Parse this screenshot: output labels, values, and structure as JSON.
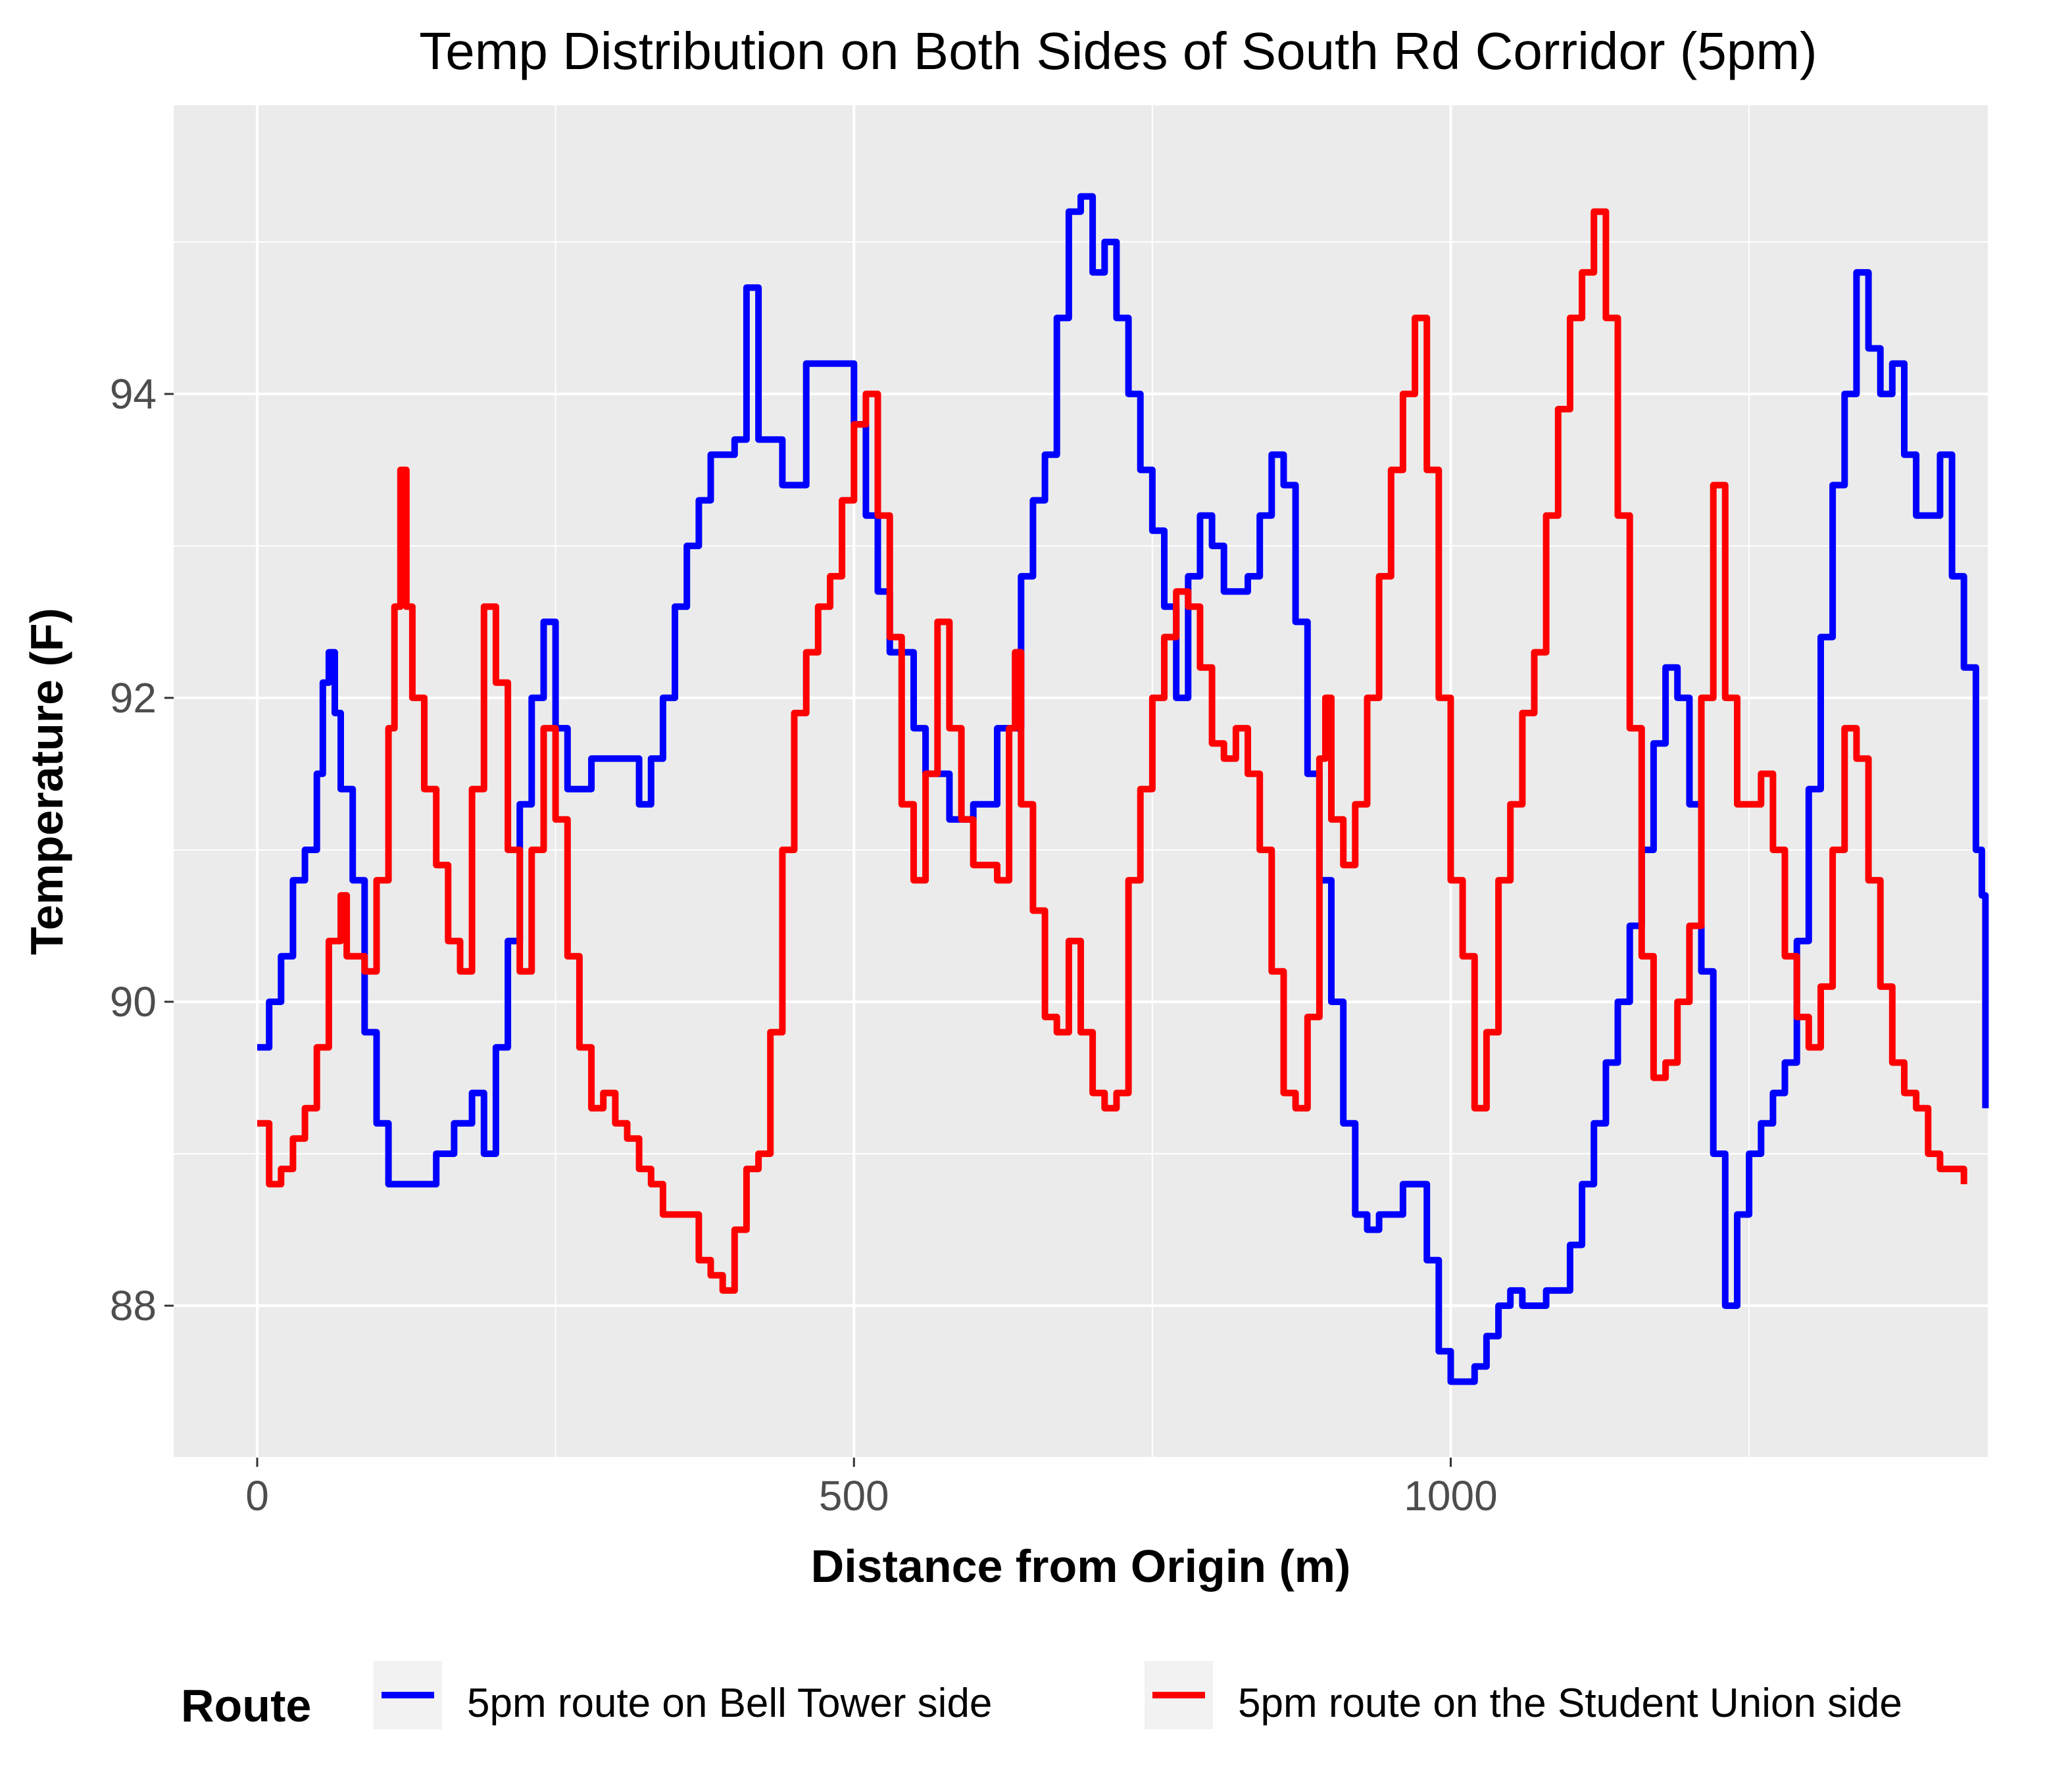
{
  "chart_data": {
    "type": "line",
    "title": "Temp Distribution on Both Sides of South Rd Corridor (5pm)",
    "xlabel": "Distance from Origin (m)",
    "ylabel": "Temperature (F)",
    "xlim": [
      -70,
      1450
    ],
    "ylim": [
      87.0,
      95.9
    ],
    "x_ticks": [
      0,
      500,
      1000
    ],
    "x_tick_labels": [
      "0",
      "500",
      "1000"
    ],
    "y_ticks": [
      88,
      90,
      92,
      94
    ],
    "y_tick_labels": [
      "88",
      "90",
      "92",
      "94"
    ],
    "grid": true,
    "legend": {
      "title": "Route",
      "position": "bottom"
    },
    "series": [
      {
        "name": "5pm route on Bell Tower side",
        "color": "#0000ff",
        "points": [
          [
            0,
            89.7
          ],
          [
            10,
            90.0
          ],
          [
            20,
            90.3
          ],
          [
            30,
            90.8
          ],
          [
            40,
            91.0
          ],
          [
            50,
            91.5
          ],
          [
            55,
            92.1
          ],
          [
            60,
            92.3
          ],
          [
            65,
            91.9
          ],
          [
            70,
            91.4
          ],
          [
            80,
            90.8
          ],
          [
            90,
            89.8
          ],
          [
            100,
            89.2
          ],
          [
            110,
            88.8
          ],
          [
            130,
            88.8
          ],
          [
            150,
            89.0
          ],
          [
            165,
            89.2
          ],
          [
            180,
            89.4
          ],
          [
            190,
            89.0
          ],
          [
            200,
            89.7
          ],
          [
            210,
            90.4
          ],
          [
            220,
            91.3
          ],
          [
            230,
            92.0
          ],
          [
            240,
            92.5
          ],
          [
            250,
            91.8
          ],
          [
            260,
            91.4
          ],
          [
            280,
            91.6
          ],
          [
            300,
            91.6
          ],
          [
            320,
            91.3
          ],
          [
            330,
            91.6
          ],
          [
            340,
            92.0
          ],
          [
            350,
            92.6
          ],
          [
            360,
            93.0
          ],
          [
            370,
            93.3
          ],
          [
            380,
            93.6
          ],
          [
            400,
            93.7
          ],
          [
            410,
            94.7
          ],
          [
            420,
            93.7
          ],
          [
            440,
            93.4
          ],
          [
            460,
            94.2
          ],
          [
            480,
            94.2
          ],
          [
            500,
            93.8
          ],
          [
            510,
            93.2
          ],
          [
            520,
            92.7
          ],
          [
            530,
            92.3
          ],
          [
            550,
            91.8
          ],
          [
            560,
            91.5
          ],
          [
            580,
            91.2
          ],
          [
            600,
            91.3
          ],
          [
            620,
            91.8
          ],
          [
            640,
            92.8
          ],
          [
            650,
            93.3
          ],
          [
            660,
            93.6
          ],
          [
            670,
            94.5
          ],
          [
            680,
            95.2
          ],
          [
            690,
            95.3
          ],
          [
            700,
            94.8
          ],
          [
            710,
            95.0
          ],
          [
            720,
            94.5
          ],
          [
            730,
            94.0
          ],
          [
            740,
            93.5
          ],
          [
            750,
            93.1
          ],
          [
            760,
            92.6
          ],
          [
            770,
            92.0
          ],
          [
            780,
            92.8
          ],
          [
            790,
            93.2
          ],
          [
            800,
            93.0
          ],
          [
            810,
            92.7
          ],
          [
            820,
            92.7
          ],
          [
            830,
            92.8
          ],
          [
            840,
            93.2
          ],
          [
            850,
            93.6
          ],
          [
            860,
            93.4
          ],
          [
            870,
            92.5
          ],
          [
            880,
            91.5
          ],
          [
            890,
            90.8
          ],
          [
            900,
            90.0
          ],
          [
            910,
            89.2
          ],
          [
            920,
            88.6
          ],
          [
            930,
            88.5
          ],
          [
            940,
            88.6
          ],
          [
            950,
            88.6
          ],
          [
            960,
            88.8
          ],
          [
            970,
            88.8
          ],
          [
            980,
            88.3
          ],
          [
            990,
            87.7
          ],
          [
            1000,
            87.5
          ],
          [
            1010,
            87.5
          ],
          [
            1020,
            87.6
          ],
          [
            1030,
            87.8
          ],
          [
            1040,
            88.0
          ],
          [
            1050,
            88.1
          ],
          [
            1060,
            88.0
          ],
          [
            1080,
            88.1
          ],
          [
            1090,
            88.1
          ],
          [
            1100,
            88.4
          ],
          [
            1110,
            88.8
          ],
          [
            1120,
            89.2
          ],
          [
            1130,
            89.6
          ],
          [
            1140,
            90.0
          ],
          [
            1150,
            90.5
          ],
          [
            1160,
            91.0
          ],
          [
            1170,
            91.7
          ],
          [
            1180,
            92.2
          ],
          [
            1190,
            92.0
          ],
          [
            1200,
            91.3
          ],
          [
            1210,
            90.2
          ],
          [
            1220,
            89.0
          ],
          [
            1230,
            88.0
          ],
          [
            1240,
            88.6
          ],
          [
            1250,
            89.0
          ],
          [
            1260,
            89.2
          ],
          [
            1270,
            89.4
          ],
          [
            1280,
            89.6
          ],
          [
            1290,
            90.4
          ],
          [
            1300,
            91.4
          ],
          [
            1310,
            92.4
          ],
          [
            1320,
            93.4
          ],
          [
            1330,
            94.0
          ],
          [
            1340,
            94.8
          ],
          [
            1350,
            94.3
          ],
          [
            1360,
            94.0
          ],
          [
            1370,
            94.2
          ],
          [
            1380,
            93.6
          ],
          [
            1390,
            93.2
          ],
          [
            1400,
            93.2
          ],
          [
            1410,
            93.6
          ],
          [
            1420,
            92.8
          ],
          [
            1430,
            92.2
          ],
          [
            1440,
            91.0
          ],
          [
            1445,
            90.7
          ],
          [
            1448,
            89.3
          ]
        ]
      },
      {
        "name": "5pm route on the Student Union side",
        "color": "#ff0000",
        "points": [
          [
            0,
            89.2
          ],
          [
            10,
            88.8
          ],
          [
            20,
            88.9
          ],
          [
            30,
            89.1
          ],
          [
            40,
            89.3
          ],
          [
            50,
            89.7
          ],
          [
            60,
            90.4
          ],
          [
            70,
            90.7
          ],
          [
            75,
            90.3
          ],
          [
            80,
            90.3
          ],
          [
            90,
            90.2
          ],
          [
            100,
            90.8
          ],
          [
            110,
            91.8
          ],
          [
            115,
            92.6
          ],
          [
            120,
            93.5
          ],
          [
            125,
            92.6
          ],
          [
            130,
            92.0
          ],
          [
            140,
            91.4
          ],
          [
            150,
            90.9
          ],
          [
            160,
            90.4
          ],
          [
            170,
            90.2
          ],
          [
            180,
            91.4
          ],
          [
            190,
            92.6
          ],
          [
            200,
            92.1
          ],
          [
            210,
            91.0
          ],
          [
            220,
            90.2
          ],
          [
            230,
            91.0
          ],
          [
            240,
            91.8
          ],
          [
            250,
            91.2
          ],
          [
            260,
            90.3
          ],
          [
            270,
            89.7
          ],
          [
            280,
            89.3
          ],
          [
            290,
            89.4
          ],
          [
            300,
            89.2
          ],
          [
            310,
            89.1
          ],
          [
            320,
            88.9
          ],
          [
            330,
            88.8
          ],
          [
            340,
            88.6
          ],
          [
            360,
            88.6
          ],
          [
            370,
            88.3
          ],
          [
            380,
            88.2
          ],
          [
            390,
            88.1
          ],
          [
            400,
            88.5
          ],
          [
            410,
            88.9
          ],
          [
            420,
            89.0
          ],
          [
            430,
            89.8
          ],
          [
            440,
            91.0
          ],
          [
            450,
            91.9
          ],
          [
            460,
            92.3
          ],
          [
            470,
            92.6
          ],
          [
            480,
            92.8
          ],
          [
            490,
            93.3
          ],
          [
            500,
            93.8
          ],
          [
            510,
            94.0
          ],
          [
            520,
            93.2
          ],
          [
            530,
            92.4
          ],
          [
            540,
            91.3
          ],
          [
            550,
            90.8
          ],
          [
            560,
            91.5
          ],
          [
            570,
            92.5
          ],
          [
            580,
            91.8
          ],
          [
            590,
            91.2
          ],
          [
            600,
            90.9
          ],
          [
            610,
            90.9
          ],
          [
            620,
            90.8
          ],
          [
            630,
            91.8
          ],
          [
            635,
            92.3
          ],
          [
            640,
            91.3
          ],
          [
            650,
            90.6
          ],
          [
            660,
            89.9
          ],
          [
            670,
            89.8
          ],
          [
            680,
            90.4
          ],
          [
            690,
            89.8
          ],
          [
            700,
            89.4
          ],
          [
            710,
            89.3
          ],
          [
            720,
            89.4
          ],
          [
            730,
            90.8
          ],
          [
            740,
            91.4
          ],
          [
            750,
            92.0
          ],
          [
            760,
            92.4
          ],
          [
            770,
            92.7
          ],
          [
            780,
            92.6
          ],
          [
            790,
            92.2
          ],
          [
            800,
            91.7
          ],
          [
            810,
            91.6
          ],
          [
            820,
            91.8
          ],
          [
            830,
            91.5
          ],
          [
            840,
            91.0
          ],
          [
            850,
            90.2
          ],
          [
            860,
            89.4
          ],
          [
            870,
            89.3
          ],
          [
            880,
            89.9
          ],
          [
            890,
            91.6
          ],
          [
            895,
            92.0
          ],
          [
            900,
            91.2
          ],
          [
            910,
            90.9
          ],
          [
            920,
            91.3
          ],
          [
            930,
            92.0
          ],
          [
            940,
            92.8
          ],
          [
            950,
            93.5
          ],
          [
            960,
            94.0
          ],
          [
            970,
            94.5
          ],
          [
            980,
            93.5
          ],
          [
            990,
            92.0
          ],
          [
            1000,
            90.8
          ],
          [
            1010,
            90.3
          ],
          [
            1020,
            89.3
          ],
          [
            1030,
            89.8
          ],
          [
            1040,
            90.8
          ],
          [
            1050,
            91.3
          ],
          [
            1060,
            91.9
          ],
          [
            1070,
            92.3
          ],
          [
            1080,
            93.2
          ],
          [
            1090,
            93.9
          ],
          [
            1100,
            94.5
          ],
          [
            1110,
            94.8
          ],
          [
            1120,
            95.2
          ],
          [
            1130,
            94.5
          ],
          [
            1140,
            93.2
          ],
          [
            1150,
            91.8
          ],
          [
            1160,
            90.3
          ],
          [
            1170,
            89.5
          ],
          [
            1180,
            89.6
          ],
          [
            1190,
            90.0
          ],
          [
            1200,
            90.5
          ],
          [
            1210,
            92.0
          ],
          [
            1220,
            93.4
          ],
          [
            1230,
            92.0
          ],
          [
            1240,
            91.3
          ],
          [
            1250,
            91.3
          ],
          [
            1260,
            91.5
          ],
          [
            1270,
            91.0
          ],
          [
            1280,
            90.3
          ],
          [
            1290,
            89.9
          ],
          [
            1300,
            89.7
          ],
          [
            1310,
            90.1
          ],
          [
            1320,
            91.0
          ],
          [
            1330,
            91.8
          ],
          [
            1340,
            91.6
          ],
          [
            1350,
            90.8
          ],
          [
            1360,
            90.1
          ],
          [
            1370,
            89.6
          ],
          [
            1380,
            89.4
          ],
          [
            1390,
            89.3
          ],
          [
            1400,
            89.0
          ],
          [
            1410,
            88.9
          ],
          [
            1420,
            88.9
          ],
          [
            1430,
            88.8
          ]
        ]
      }
    ]
  }
}
